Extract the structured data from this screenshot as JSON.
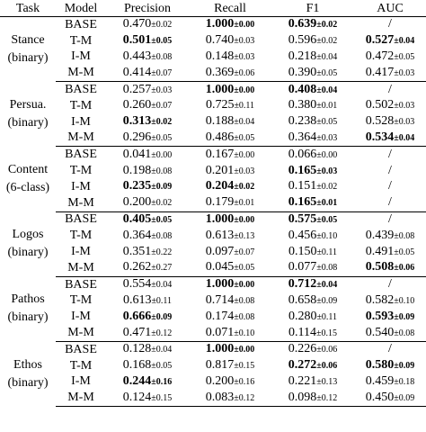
{
  "headers": [
    "Task",
    "Model",
    "Precision",
    "Recall",
    "F1",
    "AUC"
  ],
  "groups": [
    {
      "task_line1": "Stance",
      "task_line2": "(binary)",
      "rows": [
        {
          "model": "BASE",
          "precision": {
            "m": "0.470",
            "sd": "±0.02",
            "bold": false
          },
          "recall": {
            "m": "1.000",
            "sd": "±0.00",
            "bold": true
          },
          "f1": {
            "m": "0.639",
            "sd": "±0.02",
            "bold": true
          },
          "auc": {
            "m": "/",
            "sd": "",
            "bold": false
          }
        },
        {
          "model": "T-M",
          "precision": {
            "m": "0.501",
            "sd": "±0.05",
            "bold": true
          },
          "recall": {
            "m": "0.740",
            "sd": "±0.03",
            "bold": false
          },
          "f1": {
            "m": "0.596",
            "sd": "±0.02",
            "bold": false
          },
          "auc": {
            "m": "0.527",
            "sd": "±0.04",
            "bold": true
          }
        },
        {
          "model": "I-M",
          "precision": {
            "m": "0.443",
            "sd": "±0.08",
            "bold": false
          },
          "recall": {
            "m": "0.148",
            "sd": "±0.03",
            "bold": false
          },
          "f1": {
            "m": "0.218",
            "sd": "±0.04",
            "bold": false
          },
          "auc": {
            "m": "0.472",
            "sd": "±0.05",
            "bold": false
          }
        },
        {
          "model": "M-M",
          "precision": {
            "m": "0.414",
            "sd": "±0.07",
            "bold": false
          },
          "recall": {
            "m": "0.369",
            "sd": "±0.06",
            "bold": false
          },
          "f1": {
            "m": "0.390",
            "sd": "±0.05",
            "bold": false
          },
          "auc": {
            "m": "0.417",
            "sd": "±0.03",
            "bold": false
          }
        }
      ]
    },
    {
      "task_line1": "Persua.",
      "task_line2": "(binary)",
      "rows": [
        {
          "model": "BASE",
          "precision": {
            "m": "0.257",
            "sd": "±0.03",
            "bold": false
          },
          "recall": {
            "m": "1.000",
            "sd": "±0.00",
            "bold": true
          },
          "f1": {
            "m": "0.408",
            "sd": "±0.04",
            "bold": true
          },
          "auc": {
            "m": "/",
            "sd": "",
            "bold": false
          }
        },
        {
          "model": "T-M",
          "precision": {
            "m": "0.260",
            "sd": "±0.07",
            "bold": false
          },
          "recall": {
            "m": "0.725",
            "sd": "±0.11",
            "bold": false
          },
          "f1": {
            "m": "0.380",
            "sd": "±0.01",
            "bold": false
          },
          "auc": {
            "m": "0.502",
            "sd": "±0.03",
            "bold": false
          }
        },
        {
          "model": "I-M",
          "precision": {
            "m": "0.313",
            "sd": "±0.02",
            "bold": true
          },
          "recall": {
            "m": "0.188",
            "sd": "±0.04",
            "bold": false
          },
          "f1": {
            "m": "0.238",
            "sd": "±0.05",
            "bold": false
          },
          "auc": {
            "m": "0.528",
            "sd": "±0.03",
            "bold": false
          }
        },
        {
          "model": "M-M",
          "precision": {
            "m": "0.296",
            "sd": "±0.05",
            "bold": false
          },
          "recall": {
            "m": "0.486",
            "sd": "±0.05",
            "bold": false
          },
          "f1": {
            "m": "0.364",
            "sd": "±0.03",
            "bold": false
          },
          "auc": {
            "m": "0.534",
            "sd": "±0.04",
            "bold": true
          }
        }
      ]
    },
    {
      "task_line1": "Content",
      "task_line2": "(6-class)",
      "rows": [
        {
          "model": "BASE",
          "precision": {
            "m": "0.041",
            "sd": "±0.00",
            "bold": false
          },
          "recall": {
            "m": "0.167",
            "sd": "±0.00",
            "bold": false
          },
          "f1": {
            "m": "0.066",
            "sd": "±0.00",
            "bold": false
          },
          "auc": {
            "m": "/",
            "sd": "",
            "bold": false
          }
        },
        {
          "model": "T-M",
          "precision": {
            "m": "0.198",
            "sd": "±0.08",
            "bold": false
          },
          "recall": {
            "m": "0.201",
            "sd": "±0.03",
            "bold": false
          },
          "f1": {
            "m": "0.165",
            "sd": "±0.03",
            "bold": true
          },
          "auc": {
            "m": "/",
            "sd": "",
            "bold": false
          }
        },
        {
          "model": "I-M",
          "precision": {
            "m": "0.235",
            "sd": "±0.09",
            "bold": true
          },
          "recall": {
            "m": "0.204",
            "sd": "±0.02",
            "bold": true
          },
          "f1": {
            "m": "0.151",
            "sd": "±0.02",
            "bold": false
          },
          "auc": {
            "m": "/",
            "sd": "",
            "bold": false
          }
        },
        {
          "model": "M-M",
          "precision": {
            "m": "0.200",
            "sd": "±0.02",
            "bold": false
          },
          "recall": {
            "m": "0.179",
            "sd": "±0.01",
            "bold": false
          },
          "f1": {
            "m": "0.165",
            "sd": "±0.01",
            "bold": true
          },
          "auc": {
            "m": "/",
            "sd": "",
            "bold": false
          }
        }
      ]
    },
    {
      "task_line1": "Logos",
      "task_line2": "(binary)",
      "rows": [
        {
          "model": "BASE",
          "precision": {
            "m": "0.405",
            "sd": "±0.05",
            "bold": true
          },
          "recall": {
            "m": "1.000",
            "sd": "±0.00",
            "bold": true
          },
          "f1": {
            "m": "0.575",
            "sd": "±0.05",
            "bold": true
          },
          "auc": {
            "m": "/",
            "sd": "",
            "bold": false
          }
        },
        {
          "model": "T-M",
          "precision": {
            "m": "0.364",
            "sd": "±0.08",
            "bold": false
          },
          "recall": {
            "m": "0.613",
            "sd": "±0.13",
            "bold": false
          },
          "f1": {
            "m": "0.456",
            "sd": "±0.10",
            "bold": false
          },
          "auc": {
            "m": "0.439",
            "sd": "±0.08",
            "bold": false
          }
        },
        {
          "model": "I-M",
          "precision": {
            "m": "0.351",
            "sd": "±0.22",
            "bold": false
          },
          "recall": {
            "m": "0.097",
            "sd": "±0.07",
            "bold": false
          },
          "f1": {
            "m": "0.150",
            "sd": "±0.11",
            "bold": false
          },
          "auc": {
            "m": "0.491",
            "sd": "±0.05",
            "bold": false
          }
        },
        {
          "model": "M-M",
          "precision": {
            "m": "0.262",
            "sd": "±0.27",
            "bold": false
          },
          "recall": {
            "m": "0.045",
            "sd": "±0.05",
            "bold": false
          },
          "f1": {
            "m": "0.077",
            "sd": "±0.08",
            "bold": false
          },
          "auc": {
            "m": "0.508",
            "sd": "±0.06",
            "bold": true
          }
        }
      ]
    },
    {
      "task_line1": "Pathos",
      "task_line2": "(binary)",
      "rows": [
        {
          "model": "BASE",
          "precision": {
            "m": "0.554",
            "sd": "±0.04",
            "bold": false
          },
          "recall": {
            "m": "1.000",
            "sd": "±0.00",
            "bold": true
          },
          "f1": {
            "m": "0.712",
            "sd": "±0.04",
            "bold": true
          },
          "auc": {
            "m": "/",
            "sd": "",
            "bold": false
          }
        },
        {
          "model": "T-M",
          "precision": {
            "m": "0.613",
            "sd": "±0.11",
            "bold": false
          },
          "recall": {
            "m": "0.714",
            "sd": "±0.08",
            "bold": false
          },
          "f1": {
            "m": "0.658",
            "sd": "±0.09",
            "bold": false
          },
          "auc": {
            "m": "0.582",
            "sd": "±0.10",
            "bold": false
          }
        },
        {
          "model": "I-M",
          "precision": {
            "m": "0.666",
            "sd": "±0.09",
            "bold": true
          },
          "recall": {
            "m": "0.174",
            "sd": "±0.08",
            "bold": false
          },
          "f1": {
            "m": "0.280",
            "sd": "±0.11",
            "bold": false
          },
          "auc": {
            "m": "0.593",
            "sd": "±0.09",
            "bold": true
          }
        },
        {
          "model": "M-M",
          "precision": {
            "m": "0.471",
            "sd": "±0.12",
            "bold": false
          },
          "recall": {
            "m": "0.071",
            "sd": "±0.10",
            "bold": false
          },
          "f1": {
            "m": "0.114",
            "sd": "±0.15",
            "bold": false
          },
          "auc": {
            "m": "0.540",
            "sd": "±0.08",
            "bold": false
          }
        }
      ]
    },
    {
      "task_line1": "Ethos",
      "task_line2": "(binary)",
      "rows": [
        {
          "model": "BASE",
          "precision": {
            "m": "0.128",
            "sd": "±0.04",
            "bold": false
          },
          "recall": {
            "m": "1.000",
            "sd": "±0.00",
            "bold": true
          },
          "f1": {
            "m": "0.226",
            "sd": "±0.06",
            "bold": false
          },
          "auc": {
            "m": "/",
            "sd": "",
            "bold": false
          }
        },
        {
          "model": "T-M",
          "precision": {
            "m": "0.168",
            "sd": "±0.05",
            "bold": false
          },
          "recall": {
            "m": "0.817",
            "sd": "±0.15",
            "bold": false
          },
          "f1": {
            "m": "0.272",
            "sd": "±0.06",
            "bold": true
          },
          "auc": {
            "m": "0.580",
            "sd": "±0.09",
            "bold": true
          }
        },
        {
          "model": "I-M",
          "precision": {
            "m": "0.244",
            "sd": "±0.16",
            "bold": true
          },
          "recall": {
            "m": "0.200",
            "sd": "±0.16",
            "bold": false
          },
          "f1": {
            "m": "0.221",
            "sd": "±0.13",
            "bold": false
          },
          "auc": {
            "m": "0.459",
            "sd": "±0.18",
            "bold": false
          }
        },
        {
          "model": "M-M",
          "precision": {
            "m": "0.124",
            "sd": "±0.15",
            "bold": false
          },
          "recall": {
            "m": "0.083",
            "sd": "±0.12",
            "bold": false
          },
          "f1": {
            "m": "0.098",
            "sd": "±0.12",
            "bold": false
          },
          "auc": {
            "m": "0.450",
            "sd": "±0.09",
            "bold": false
          }
        }
      ]
    }
  ]
}
